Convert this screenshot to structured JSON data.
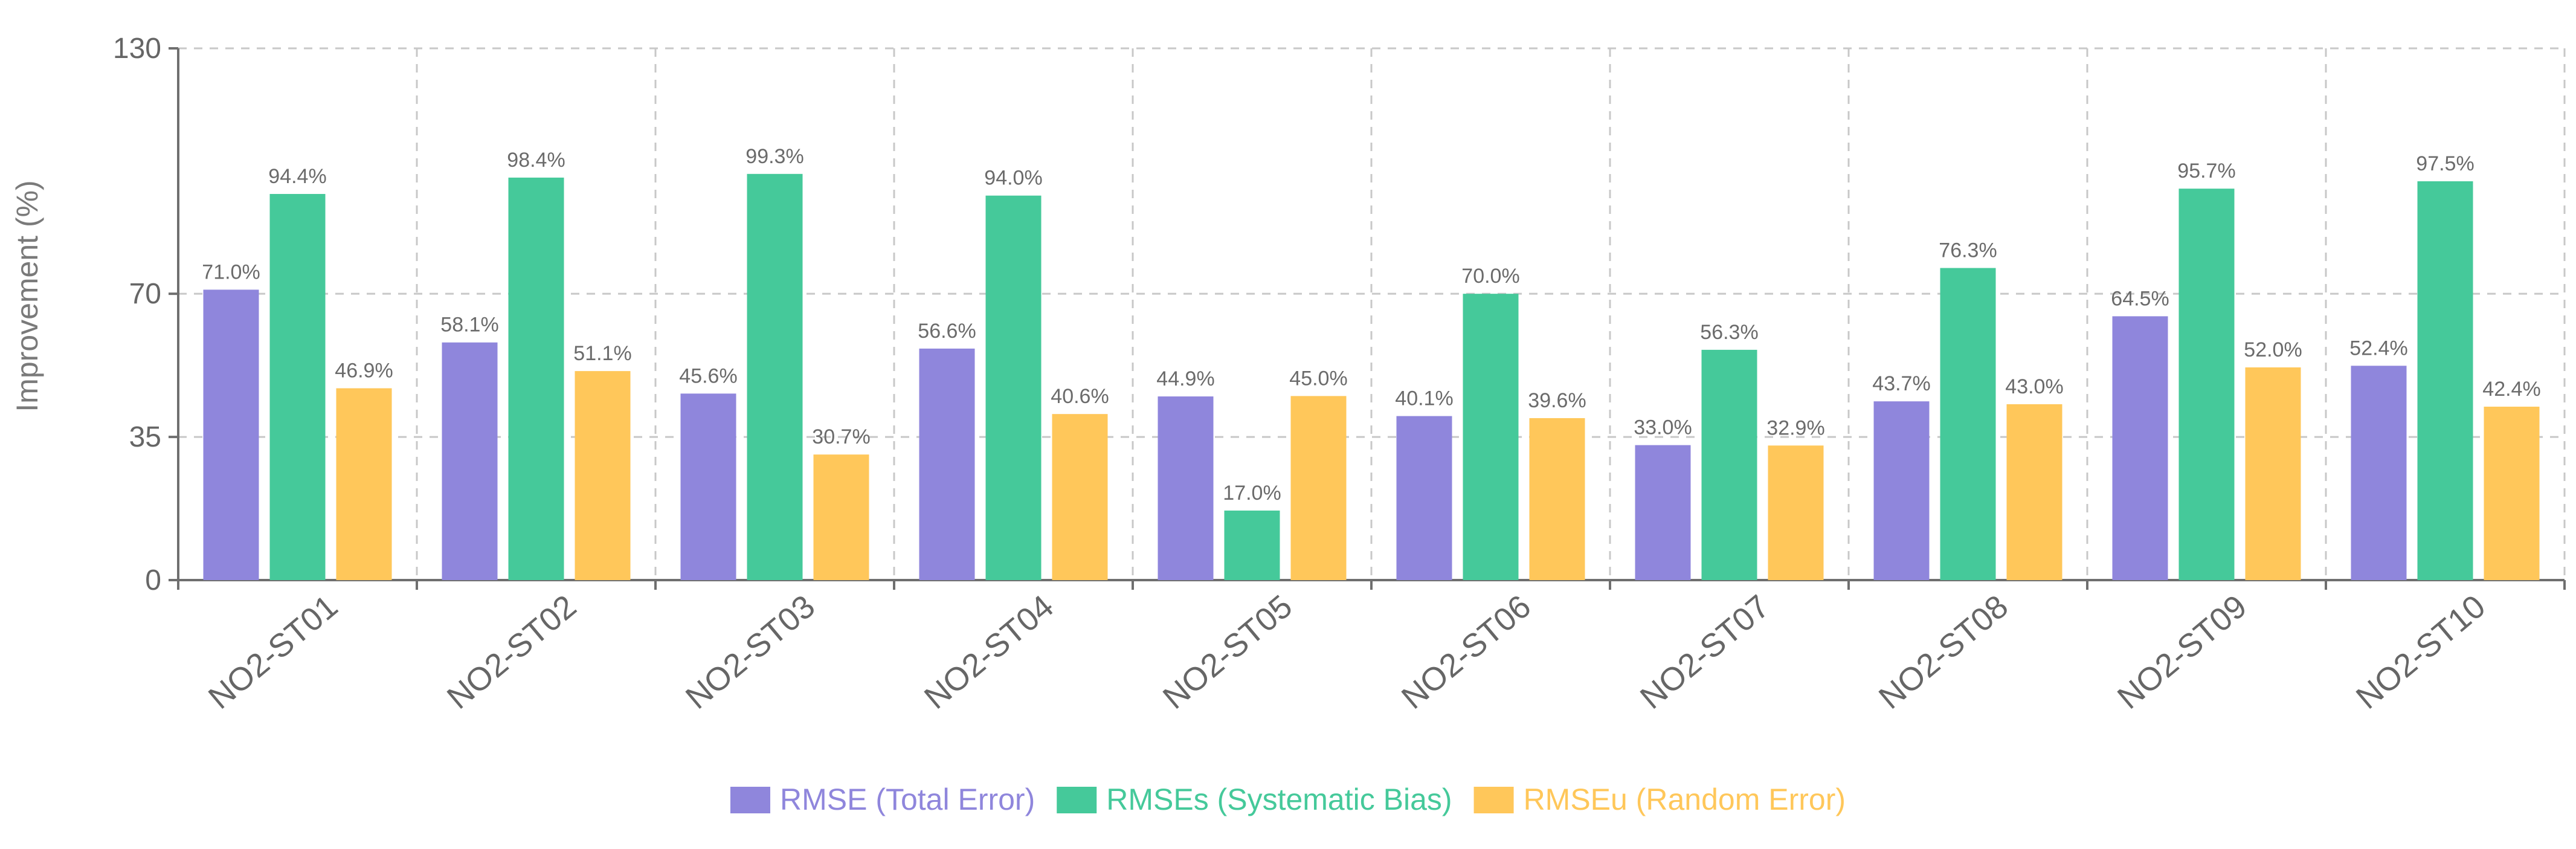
{
  "chart_data": {
    "type": "bar",
    "title": "",
    "xlabel": "",
    "ylabel": "Improvement (%)",
    "ylim": [
      0,
      130
    ],
    "yticks": [
      0,
      35,
      70,
      130
    ],
    "grid": true,
    "legend_position": "bottom-center",
    "categories": [
      "NO2-ST01",
      "NO2-ST02",
      "NO2-ST03",
      "NO2-ST04",
      "NO2-ST05",
      "NO2-ST06",
      "NO2-ST07",
      "NO2-ST08",
      "NO2-ST09",
      "NO2-ST10"
    ],
    "series": [
      {
        "name": "RMSE (Total Error)",
        "color": "#8f86dc",
        "values": [
          71.0,
          58.1,
          45.6,
          56.6,
          44.9,
          40.1,
          33.0,
          43.7,
          64.5,
          52.4
        ],
        "labels": [
          "71.0%",
          "58.1%",
          "45.6%",
          "56.6%",
          "44.9%",
          "40.1%",
          "33.0%",
          "43.7%",
          "64.5%",
          "52.4%"
        ]
      },
      {
        "name": "RMSEs (Systematic Bias)",
        "color": "#45c99a",
        "values": [
          94.4,
          98.4,
          99.3,
          94.0,
          17.0,
          70.0,
          56.3,
          76.3,
          95.7,
          97.5
        ],
        "labels": [
          "94.4%",
          "98.4%",
          "99.3%",
          "94.0%",
          "17.0%",
          "70.0%",
          "56.3%",
          "76.3%",
          "95.7%",
          "97.5%"
        ]
      },
      {
        "name": "RMSEu (Random Error)",
        "color": "#ffc75a",
        "values": [
          46.9,
          51.1,
          30.7,
          40.6,
          45.0,
          39.6,
          32.9,
          43.0,
          52.0,
          42.4
        ],
        "labels": [
          "46.9%",
          "51.1%",
          "30.7%",
          "40.6%",
          "45.0%",
          "39.6%",
          "32.9%",
          "43.0%",
          "52.0%",
          "42.4%"
        ]
      }
    ]
  }
}
